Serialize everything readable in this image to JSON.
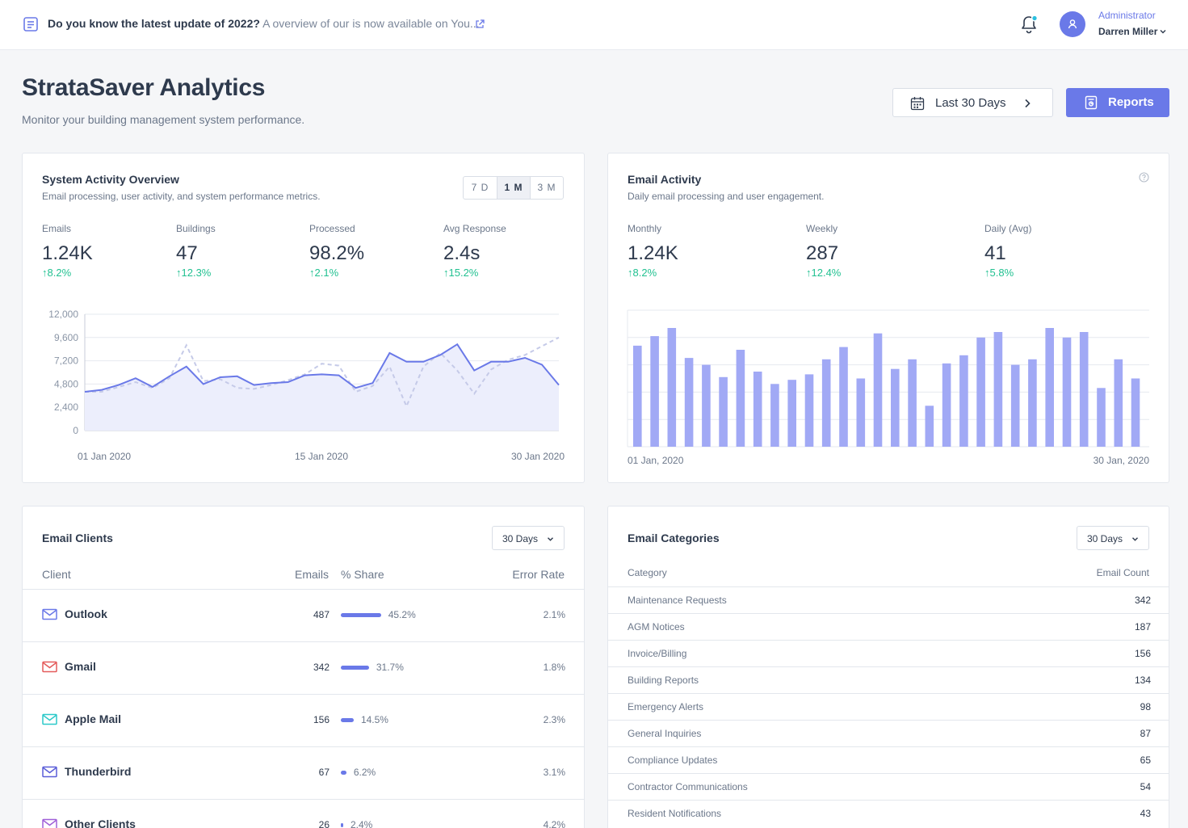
{
  "topbar": {
    "news_bold": "Do you know the latest update of 2022?",
    "news_text": "A overview of our is now available on You...",
    "user_role": "Administrator",
    "user_name": "Darren Miller"
  },
  "header": {
    "title": "StrataSaver Analytics",
    "subtitle": "Monitor your building management system performance.",
    "range_label": "Last 30 Days",
    "reports_label": "Reports"
  },
  "activity": {
    "title": "System Activity Overview",
    "subtitle": "Email processing, user activity, and system performance metrics.",
    "tabs": [
      "7 D",
      "1 M",
      "3 M"
    ],
    "active_tab": "1 M",
    "stats": [
      {
        "label": "Emails",
        "value": "1.24K",
        "change": "8.2%"
      },
      {
        "label": "Buildings",
        "value": "47",
        "change": "12.3%"
      },
      {
        "label": "Processed",
        "value": "98.2%",
        "change": "2.1%"
      },
      {
        "label": "Avg Response",
        "value": "2.4s",
        "change": "15.2%"
      }
    ]
  },
  "email_activity": {
    "title": "Email Activity",
    "subtitle": "Daily email processing and user engagement.",
    "stats": [
      {
        "label": "Monthly",
        "value": "1.24K",
        "change": "8.2%"
      },
      {
        "label": "Weekly",
        "value": "287",
        "change": "12.4%"
      },
      {
        "label": "Daily (Avg)",
        "value": "41",
        "change": "5.8%"
      }
    ]
  },
  "chart_data": [
    {
      "type": "area",
      "x_labels": [
        "01 Jan 2020",
        "15 Jan 2020",
        "30 Jan 2020"
      ],
      "ylim": [
        0,
        12000
      ],
      "y_ticks": [
        "0",
        "2,400",
        "4,800",
        "7,200",
        "9,600",
        "12,000"
      ],
      "series": [
        {
          "values": [
            4000,
            4200,
            4700,
            5400,
            4500,
            5600,
            6600,
            4800,
            5500,
            5600,
            4700,
            4900,
            5000,
            5700,
            5800,
            5700,
            4400,
            4900,
            8000,
            7100,
            7100,
            7800,
            8900,
            6200,
            7100,
            7100,
            7500,
            6800,
            4700
          ]
        },
        {
          "values": [
            4000,
            4000,
            4500,
            5000,
            4400,
            5400,
            8800,
            5100,
            5300,
            4400,
            4300,
            4700,
            5200,
            5800,
            6900,
            6700,
            4000,
            4600,
            6600,
            2500,
            6600,
            8000,
            6200,
            3800,
            6300,
            7300,
            7800,
            8700,
            9600
          ]
        }
      ]
    },
    {
      "type": "bar",
      "x_labels": [
        "01 Jan, 2020",
        "30 Jan, 2020"
      ],
      "values": [
        74,
        81,
        87,
        65,
        60,
        51,
        71,
        55,
        46,
        49,
        53,
        64,
        73,
        50,
        83,
        57,
        64,
        30,
        61,
        67,
        80,
        84,
        60,
        64,
        87,
        80,
        84,
        43,
        64,
        50
      ]
    }
  ],
  "clients": {
    "title": "Email Clients",
    "range": "30 Days",
    "headers": {
      "client": "Client",
      "emails": "Emails",
      "share": "% Share",
      "error": "Error Rate"
    },
    "rows": [
      {
        "name": "Outlook",
        "emails": "487",
        "share": "45.2%",
        "share_value": 45.2,
        "error": "2.1%",
        "color": "#6a79e8"
      },
      {
        "name": "Gmail",
        "emails": "342",
        "share": "31.7%",
        "share_value": 31.7,
        "error": "1.8%",
        "color": "#e45b5b"
      },
      {
        "name": "Apple Mail",
        "emails": "156",
        "share": "14.5%",
        "share_value": 14.5,
        "error": "2.3%",
        "color": "#2cc9c9"
      },
      {
        "name": "Thunderbird",
        "emails": "67",
        "share": "6.2%",
        "share_value": 6.2,
        "error": "3.1%",
        "color": "#5b5ed8"
      },
      {
        "name": "Other Clients",
        "emails": "26",
        "share": "2.4%",
        "share_value": 2.4,
        "error": "4.2%",
        "color": "#a060d8"
      }
    ]
  },
  "categories": {
    "title": "Email Categories",
    "range": "30 Days",
    "headers": {
      "category": "Category",
      "count": "Email Count"
    },
    "rows": [
      {
        "name": "Maintenance Requests",
        "count": "342"
      },
      {
        "name": "AGM Notices",
        "count": "187"
      },
      {
        "name": "Invoice/Billing",
        "count": "156"
      },
      {
        "name": "Building Reports",
        "count": "134"
      },
      {
        "name": "Emergency Alerts",
        "count": "98"
      },
      {
        "name": "General Inquiries",
        "count": "87"
      },
      {
        "name": "Compliance Updates",
        "count": "65"
      },
      {
        "name": "Contractor Communications",
        "count": "54"
      },
      {
        "name": "Resident Notifications",
        "count": "43"
      }
    ]
  },
  "colors": {
    "accent": "#6a79e8",
    "positive": "#22c191",
    "bar": "#a1a9f5"
  }
}
